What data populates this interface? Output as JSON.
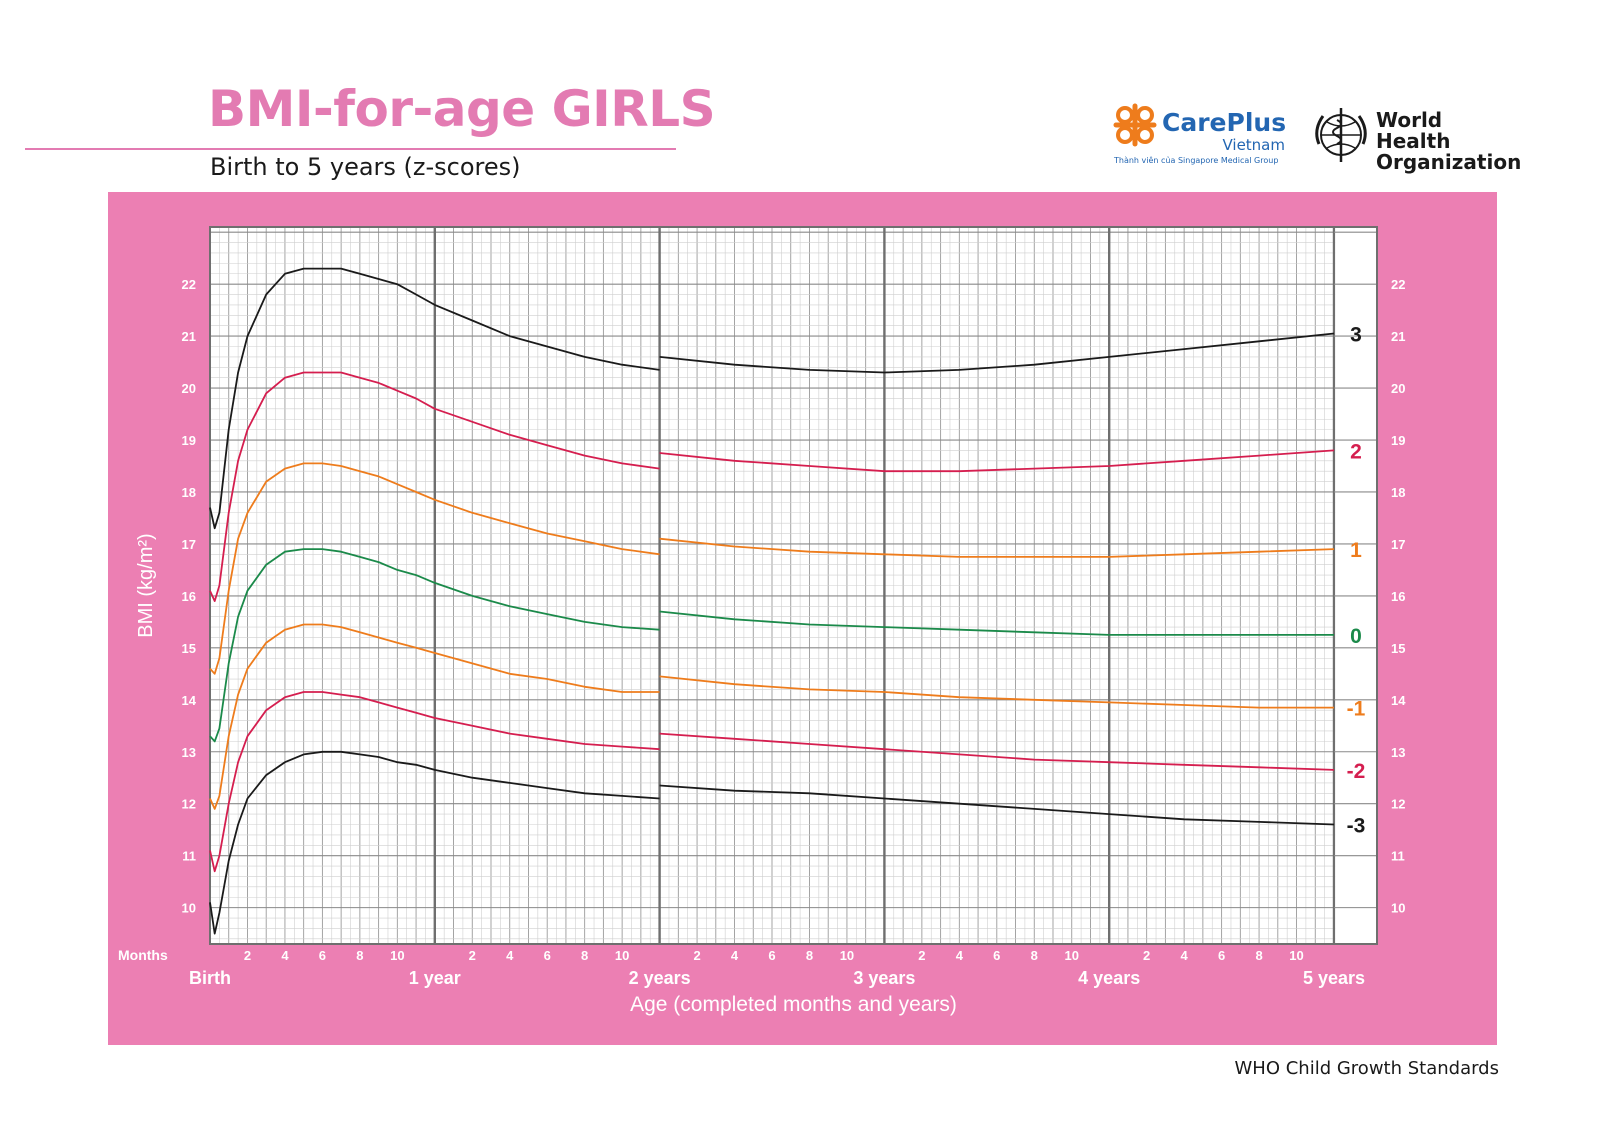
{
  "header": {
    "title": "BMI-for-age GIRLS",
    "subtitle": "Birth to 5 years (z-scores)"
  },
  "logos": {
    "careplus": {
      "name": "CarePlus",
      "country": "Vietnam",
      "tagline": "Thành viên của Singapore Medical Group",
      "icon": "careplus-cross-icon"
    },
    "who": {
      "name": "World Health Organization",
      "icon": "who-emblem-icon"
    }
  },
  "footer": "WHO Child Growth Standards",
  "colors": {
    "panel": "#ec7fb3",
    "title": "#e37bb2",
    "z3": "#1a1a1a",
    "z2": "#d51e4f",
    "z1": "#ee7c1c",
    "z0": "#1b8a4a"
  },
  "chart_data": {
    "type": "line",
    "title": "BMI-for-age GIRLS",
    "subtitle": "Birth to 5 years (z-scores)",
    "xlabel": "Age (completed months and years)",
    "ylabel": "BMI (kg/m²)",
    "x_unit_label": "Months",
    "xlim": [
      0,
      60
    ],
    "ylim": [
      9.3,
      23.1
    ],
    "y_ticks": [
      10,
      11,
      12,
      13,
      14,
      15,
      16,
      17,
      18,
      19,
      20,
      21,
      22
    ],
    "x_month_ticks": [
      2,
      4,
      6,
      8,
      10
    ],
    "x_major_labels": [
      {
        "x": 0,
        "label": "Birth"
      },
      {
        "x": 12,
        "label": "1 year"
      },
      {
        "x": 24,
        "label": "2 years"
      },
      {
        "x": 36,
        "label": "3 years"
      },
      {
        "x": 48,
        "label": "4 years"
      },
      {
        "x": 60,
        "label": "5 years"
      }
    ],
    "grid": true,
    "x": [
      0,
      0.25,
      0.5,
      1,
      1.5,
      2,
      3,
      4,
      5,
      6,
      7,
      8,
      9,
      10,
      11,
      12,
      14,
      16,
      18,
      20,
      22,
      24,
      24,
      28,
      32,
      36,
      40,
      44,
      48,
      52,
      56,
      60
    ],
    "series": [
      {
        "name": "3",
        "color": "#1a1a1a",
        "values": [
          17.7,
          17.3,
          17.6,
          19.2,
          20.3,
          21.0,
          21.8,
          22.2,
          22.3,
          22.3,
          22.3,
          22.2,
          22.1,
          22.0,
          21.8,
          21.6,
          21.3,
          21.0,
          20.8,
          20.6,
          20.45,
          20.35,
          20.6,
          20.45,
          20.35,
          20.3,
          20.35,
          20.45,
          20.6,
          20.75,
          20.9,
          21.05
        ]
      },
      {
        "name": "2",
        "color": "#d51e4f",
        "values": [
          16.1,
          15.9,
          16.2,
          17.6,
          18.6,
          19.2,
          19.9,
          20.2,
          20.3,
          20.3,
          20.3,
          20.2,
          20.1,
          19.95,
          19.8,
          19.6,
          19.35,
          19.1,
          18.9,
          18.7,
          18.55,
          18.45,
          18.75,
          18.6,
          18.5,
          18.4,
          18.4,
          18.45,
          18.5,
          18.6,
          18.7,
          18.8
        ]
      },
      {
        "name": "1",
        "color": "#ee7c1c",
        "values": [
          14.6,
          14.5,
          14.8,
          16.1,
          17.1,
          17.6,
          18.2,
          18.45,
          18.55,
          18.55,
          18.5,
          18.4,
          18.3,
          18.15,
          18.0,
          17.85,
          17.6,
          17.4,
          17.2,
          17.05,
          16.9,
          16.8,
          17.1,
          16.95,
          16.85,
          16.8,
          16.75,
          16.75,
          16.75,
          16.8,
          16.85,
          16.9
        ]
      },
      {
        "name": "0",
        "color": "#1b8a4a",
        "values": [
          13.3,
          13.2,
          13.45,
          14.7,
          15.6,
          16.1,
          16.6,
          16.85,
          16.9,
          16.9,
          16.85,
          16.75,
          16.65,
          16.5,
          16.4,
          16.25,
          16.0,
          15.8,
          15.65,
          15.5,
          15.4,
          15.35,
          15.7,
          15.55,
          15.45,
          15.4,
          15.35,
          15.3,
          15.25,
          15.25,
          15.25,
          15.25
        ]
      },
      {
        "name": "-1",
        "color": "#ee7c1c",
        "values": [
          12.1,
          11.9,
          12.15,
          13.3,
          14.1,
          14.6,
          15.1,
          15.35,
          15.45,
          15.45,
          15.4,
          15.3,
          15.2,
          15.1,
          15.0,
          14.9,
          14.7,
          14.5,
          14.4,
          14.25,
          14.15,
          14.15,
          14.45,
          14.3,
          14.2,
          14.15,
          14.05,
          14.0,
          13.95,
          13.9,
          13.85,
          13.85
        ]
      },
      {
        "name": "-2",
        "color": "#d51e4f",
        "values": [
          11.1,
          10.7,
          11.0,
          12.0,
          12.8,
          13.3,
          13.8,
          14.05,
          14.15,
          14.15,
          14.1,
          14.05,
          13.95,
          13.85,
          13.75,
          13.65,
          13.5,
          13.35,
          13.25,
          13.15,
          13.1,
          13.05,
          13.35,
          13.25,
          13.15,
          13.05,
          12.95,
          12.85,
          12.8,
          12.75,
          12.7,
          12.65
        ]
      },
      {
        "name": "-3",
        "color": "#1a1a1a",
        "values": [
          10.1,
          9.5,
          9.9,
          10.9,
          11.6,
          12.1,
          12.55,
          12.8,
          12.95,
          13.0,
          13.0,
          12.95,
          12.9,
          12.8,
          12.75,
          12.65,
          12.5,
          12.4,
          12.3,
          12.2,
          12.15,
          12.1,
          12.35,
          12.25,
          12.2,
          12.1,
          12.0,
          11.9,
          11.8,
          11.7,
          11.65,
          11.6
        ]
      }
    ]
  }
}
